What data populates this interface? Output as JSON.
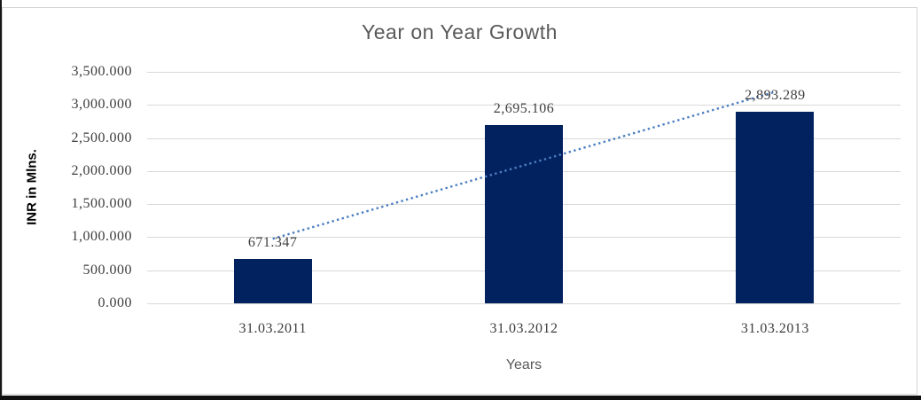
{
  "chart_data": {
    "type": "bar",
    "title": "Year on Year Growth",
    "xlabel": "Years",
    "ylabel": "INR in Mlns.",
    "categories": [
      "31.03.2011",
      "31.03.2012",
      "31.03.2013"
    ],
    "values": [
      671.347,
      2695.106,
      2893.289
    ],
    "value_labels": [
      "671.347",
      "2,695.106",
      "2,893.289"
    ],
    "ylim": [
      0,
      3500
    ],
    "ytick_step": 500,
    "ytick_labels": [
      "0.000",
      "500.000",
      "1,000.000",
      "1,500.000",
      "2,000.000",
      "2,500.000",
      "3,000.000",
      "3,500.000"
    ],
    "grid": "horizontal",
    "legend": "none",
    "trendline": {
      "type": "linear",
      "style": "dotted"
    },
    "colors": {
      "bar": "#02215F",
      "trendline": "#4A7EC0",
      "gridline": "#D9D9D9",
      "title_text": "#595959",
      "axis_tick_text": "#3C3C3C",
      "data_label_text": "#404040",
      "axis_title_text": "#595959",
      "y_axis_title_text": "#000000",
      "panel_border": "#D4D4D4",
      "background": "#FFFFFF"
    }
  }
}
